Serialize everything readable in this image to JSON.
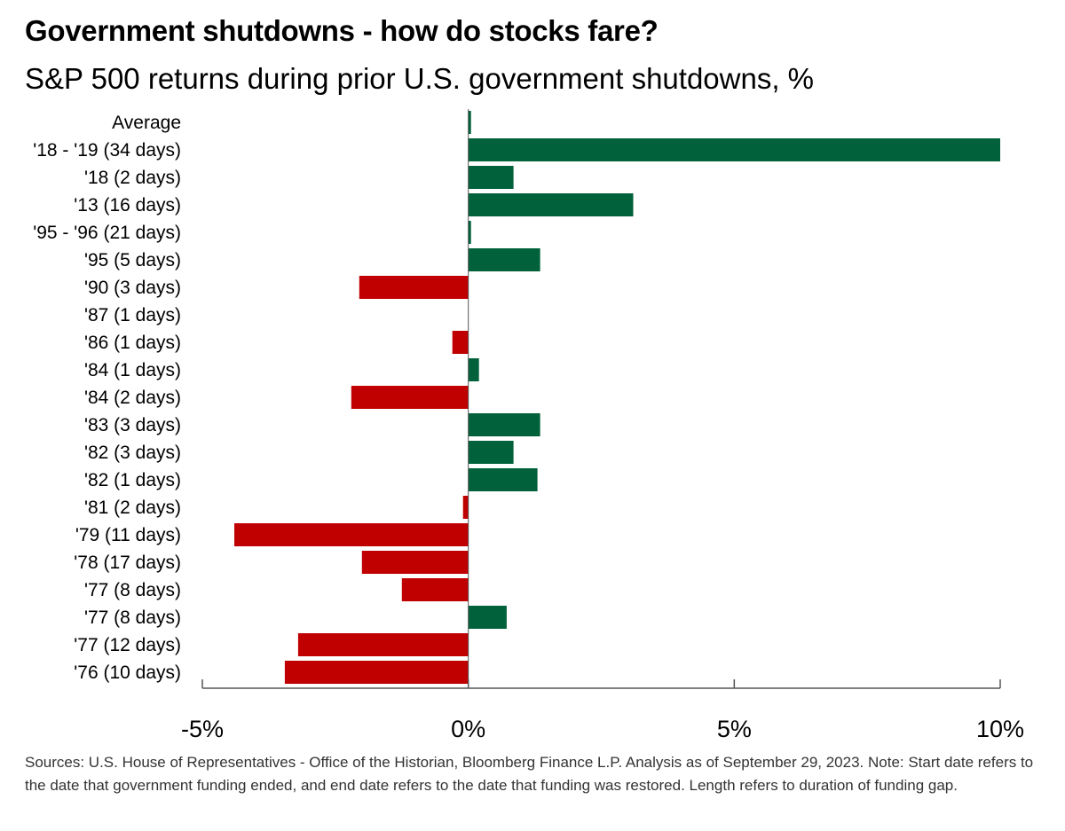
{
  "title": "Government shutdowns - how do stocks fare?",
  "subtitle": "S&P 500 returns during prior U.S. government shutdowns, %",
  "footnote": "Sources: U.S. House of Representatives - Office of the Historian, Bloomberg Finance L.P. Analysis as of September 29, 2023. Note: Start date refers to the date that government funding ended, and end date refers to the date that funding was restored. Length refers to duration of funding gap.",
  "colors": {
    "positive": "#00613b",
    "negative": "#c00000",
    "axis": "#555555"
  },
  "chart_data": {
    "type": "bar",
    "orientation": "horizontal",
    "categories": [
      "Average",
      "'18 - '19 (34 days)",
      "'18 (2 days)",
      "'13 (16 days)",
      "'95 - '96 (21 days)",
      "'95 (5 days)",
      "'90 (3 days)",
      "'87 (1 days)",
      "'86 (1 days)",
      "'84 (1 days)",
      "'84 (2 days)",
      "'83 (3 days)",
      "'82 (3 days)",
      "'82 (1 days)",
      "'81 (2 days)",
      "'79 (11 days)",
      "'78 (17 days)",
      "'77 (8 days)",
      "'77 (8 days)",
      "'77 (12 days)",
      "'76 (10 days)"
    ],
    "values": [
      0.05,
      10.0,
      0.85,
      3.1,
      0.05,
      1.35,
      -2.05,
      0.0,
      -0.3,
      0.2,
      -2.2,
      1.35,
      0.85,
      1.3,
      -0.1,
      -4.4,
      -2.0,
      -1.25,
      0.72,
      -3.2,
      -3.45
    ],
    "xlim": [
      -5,
      10
    ],
    "xticks": [
      -5,
      0,
      5,
      10
    ],
    "xtick_labels": [
      "-5%",
      "0%",
      "5%",
      "10%"
    ],
    "xlabel": "",
    "ylabel": "",
    "grid": false,
    "legend": false
  }
}
